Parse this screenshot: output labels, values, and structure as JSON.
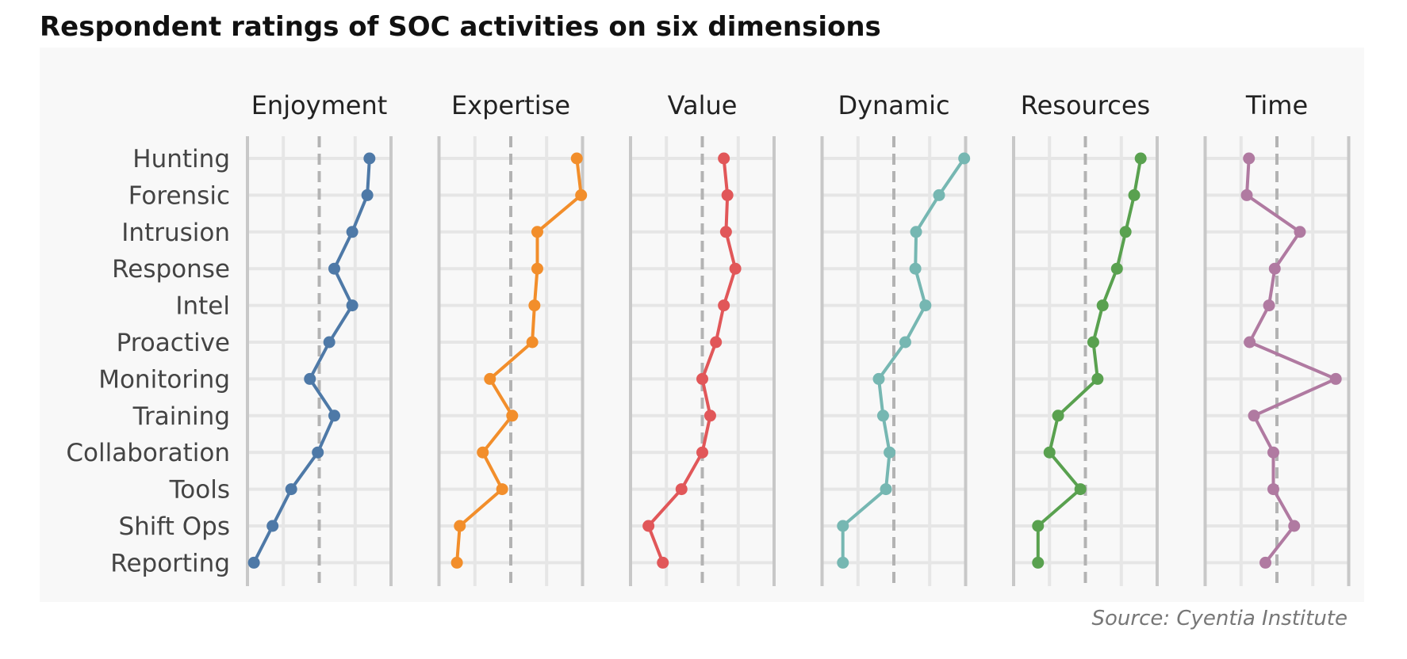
{
  "title": "Respondent ratings of SOC activities on six dimensions",
  "source": "Source: Cyentia Institute",
  "chart_data": {
    "type": "line",
    "orientation": "dot-line per facet, categories on vertical axis",
    "categories": [
      "Hunting",
      "Forensic",
      "Intrusion",
      "Response",
      "Intel",
      "Proactive",
      "Monitoring",
      "Training",
      "Collaboration",
      "Tools",
      "Shift Ops",
      "Reporting"
    ],
    "xlim": [
      -1,
      1
    ],
    "grid": true,
    "reference_line": 0,
    "series": [
      {
        "name": "Enjoyment",
        "color": "#4e79a7",
        "values": [
          0.7,
          0.67,
          0.46,
          0.21,
          0.46,
          0.14,
          -0.13,
          0.21,
          -0.02,
          -0.39,
          -0.65,
          -0.91
        ]
      },
      {
        "name": "Expertise",
        "color": "#f28e2b",
        "values": [
          0.92,
          0.98,
          0.37,
          0.37,
          0.33,
          0.3,
          -0.29,
          0.02,
          -0.39,
          -0.12,
          -0.71,
          -0.75
        ]
      },
      {
        "name": "Value",
        "color": "#e15759",
        "values": [
          0.3,
          0.35,
          0.33,
          0.46,
          0.3,
          0.19,
          0.0,
          0.11,
          0.0,
          -0.29,
          -0.75,
          -0.55
        ]
      },
      {
        "name": "Dynamic",
        "color": "#76b7b2",
        "values": [
          0.98,
          0.63,
          0.31,
          0.3,
          0.44,
          0.16,
          -0.21,
          -0.15,
          -0.06,
          -0.11,
          -0.71,
          -0.71
        ]
      },
      {
        "name": "Resources",
        "color": "#59a14f",
        "values": [
          0.77,
          0.68,
          0.56,
          0.44,
          0.24,
          0.11,
          0.17,
          -0.38,
          -0.5,
          -0.07,
          -0.66,
          -0.66
        ]
      },
      {
        "name": "Time",
        "color": "#b07aa1",
        "values": [
          -0.39,
          -0.42,
          0.32,
          -0.03,
          -0.11,
          -0.38,
          0.82,
          -0.32,
          -0.05,
          -0.05,
          0.24,
          -0.16
        ]
      }
    ]
  }
}
